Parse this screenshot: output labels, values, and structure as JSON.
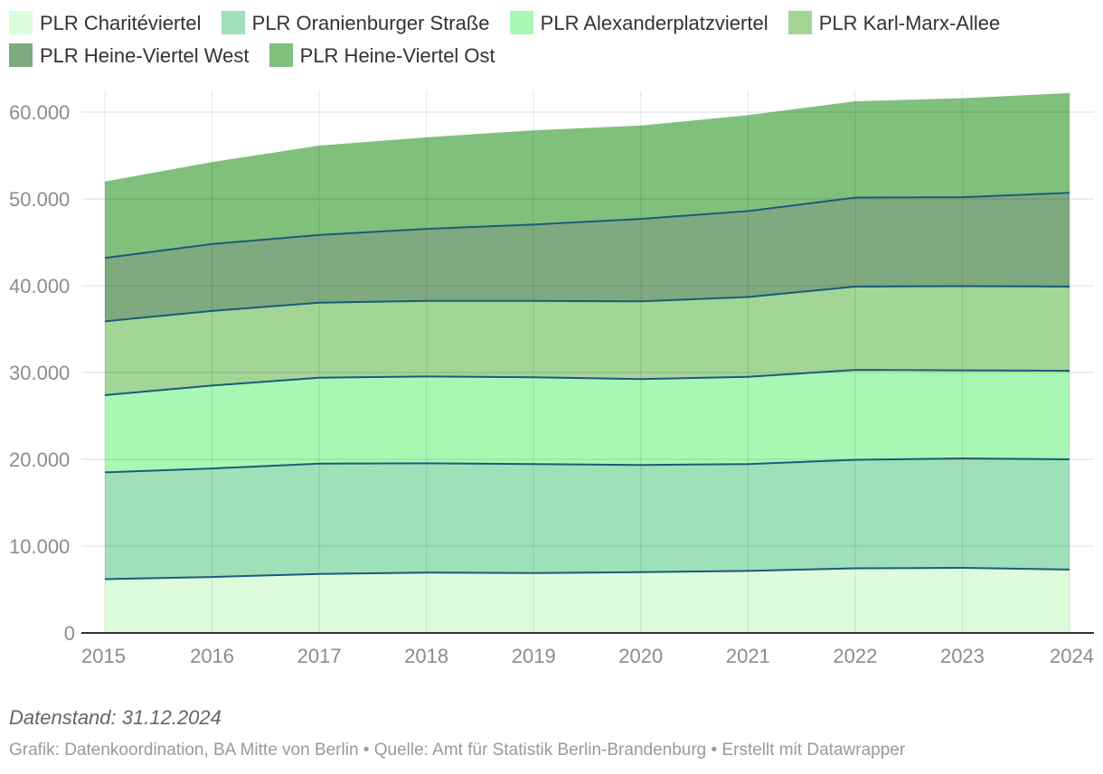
{
  "chart_data": {
    "type": "area",
    "stacked": true,
    "categories": [
      "2015",
      "2016",
      "2017",
      "2018",
      "2019",
      "2020",
      "2021",
      "2022",
      "2023",
      "2024"
    ],
    "series": [
      {
        "name": "PLR Charitéviertel",
        "color": "#dcfcdc",
        "values": [
          6200,
          6450,
          6800,
          6950,
          6900,
          7000,
          7150,
          7450,
          7500,
          7300
        ]
      },
      {
        "name": "PLR Oranienburger Straße",
        "color": "#9ee0b8",
        "values": [
          12300,
          12500,
          12700,
          12600,
          12550,
          12350,
          12300,
          12500,
          12600,
          12700
        ]
      },
      {
        "name": "PLR Alexanderplatzviertel",
        "color": "#a8f8b4",
        "values": [
          8900,
          9550,
          9900,
          10000,
          10000,
          9900,
          10050,
          10350,
          10150,
          10200
        ]
      },
      {
        "name": "PLR Karl-Marx-Allee",
        "color": "#a2d596",
        "values": [
          8500,
          8600,
          8650,
          8700,
          8800,
          8950,
          9200,
          9600,
          9700,
          9700
        ]
      },
      {
        "name": "PLR Heine-Viertel West",
        "color": "#7fa97e",
        "values": [
          7300,
          7700,
          7800,
          8300,
          8800,
          9500,
          9900,
          10250,
          10250,
          10800
        ]
      },
      {
        "name": "PLR Heine-Viertel Ost",
        "color": "#7fc07c",
        "values": [
          8800,
          9450,
          10300,
          10550,
          10850,
          10750,
          11050,
          11100,
          11400,
          11500
        ]
      }
    ],
    "ylim": [
      0,
      62500
    ],
    "yticks": [
      0,
      10000,
      20000,
      30000,
      40000,
      50000,
      60000
    ],
    "ytick_labels": [
      "0",
      "10.000",
      "20.000",
      "30.000",
      "40.000",
      "50.000",
      "60.000"
    ],
    "line_color": "#1d5a78",
    "grid": true,
    "legend_position": "top",
    "title": "",
    "xlabel": "",
    "ylabel": ""
  },
  "legend": {
    "items": [
      {
        "label": "PLR Charitéviertel",
        "color": "#dcfcdc"
      },
      {
        "label": "PLR Oranienburger Straße",
        "color": "#9ee0b8"
      },
      {
        "label": "PLR Alexanderplatzviertel",
        "color": "#a8f8b4"
      },
      {
        "label": "PLR Karl-Marx-Allee",
        "color": "#a2d596"
      },
      {
        "label": "PLR Heine-Viertel West",
        "color": "#7fa97e"
      },
      {
        "label": "PLR Heine-Viertel Ost",
        "color": "#7fc07c"
      }
    ]
  },
  "footer": {
    "date_note": "Datenstand: 31.12.2024",
    "credit": "Grafik: Datenkoordination, BA Mitte von Berlin • Quelle: Amt für Statistik Berlin-Brandenburg • Erstellt mit Datawrapper"
  }
}
